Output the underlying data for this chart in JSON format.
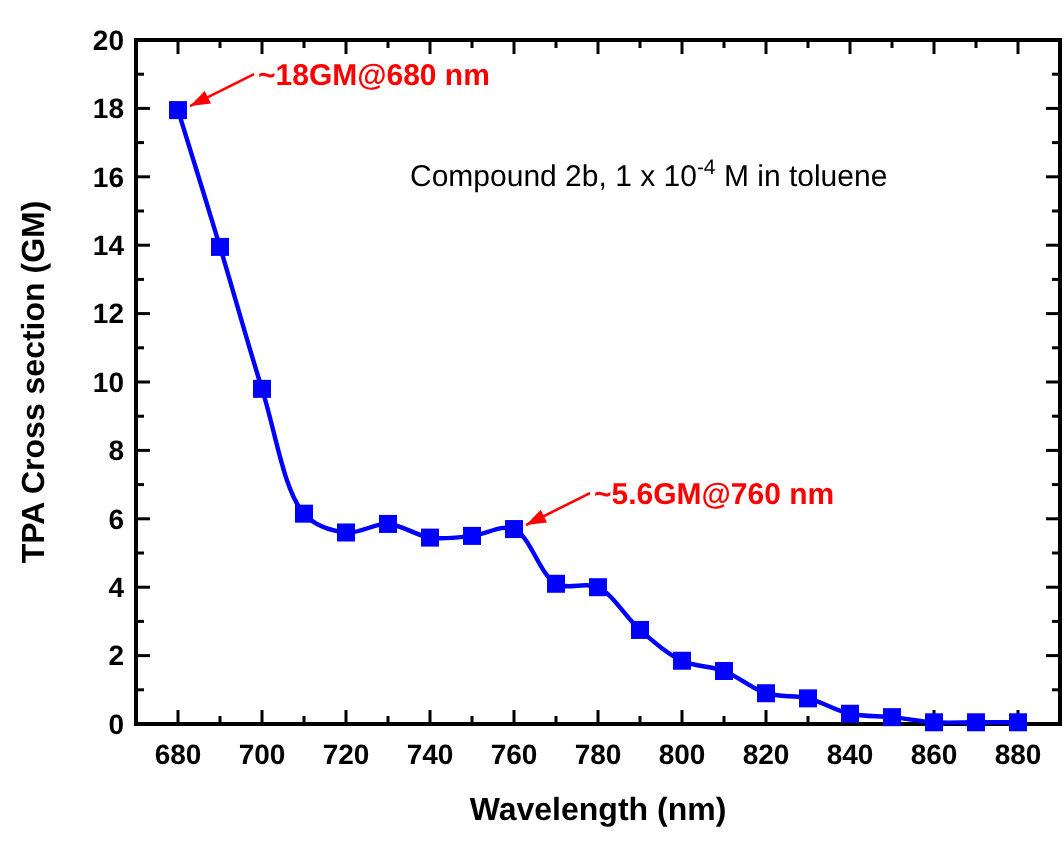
{
  "chart_data": {
    "type": "line",
    "xlabel": "Wavelength (nm)",
    "ylabel": "TPA Cross section (GM)",
    "x": [
      680,
      690,
      700,
      710,
      720,
      730,
      740,
      750,
      760,
      770,
      780,
      790,
      800,
      810,
      820,
      830,
      840,
      850,
      860,
      870,
      880
    ],
    "series": [
      {
        "color": "#0000ff",
        "values": [
          17.95,
          13.95,
          9.8,
          6.15,
          5.6,
          5.85,
          5.45,
          5.5,
          5.7,
          4.1,
          4.0,
          2.75,
          1.85,
          1.55,
          0.9,
          0.75,
          0.3,
          0.2,
          0.05,
          0.05,
          0.05
        ]
      }
    ],
    "marker": "square",
    "line_style": "solid",
    "grid": false,
    "xlim": [
      670,
      890
    ],
    "xticks": [
      680,
      700,
      720,
      740,
      760,
      780,
      800,
      820,
      840,
      860,
      880
    ],
    "ylim": [
      0,
      20
    ],
    "yticks": [
      0,
      2,
      4,
      6,
      8,
      10,
      12,
      14,
      16,
      18,
      20
    ],
    "annotations": [
      {
        "text": "~18GM@680 nm",
        "x": 680,
        "y": 17.95
      },
      {
        "text": "~5.6GM@760 nm",
        "x": 760,
        "y": 5.7
      },
      "Compound 2b, 1 x 10$^{-4}$ M in toluene"
    ]
  }
}
